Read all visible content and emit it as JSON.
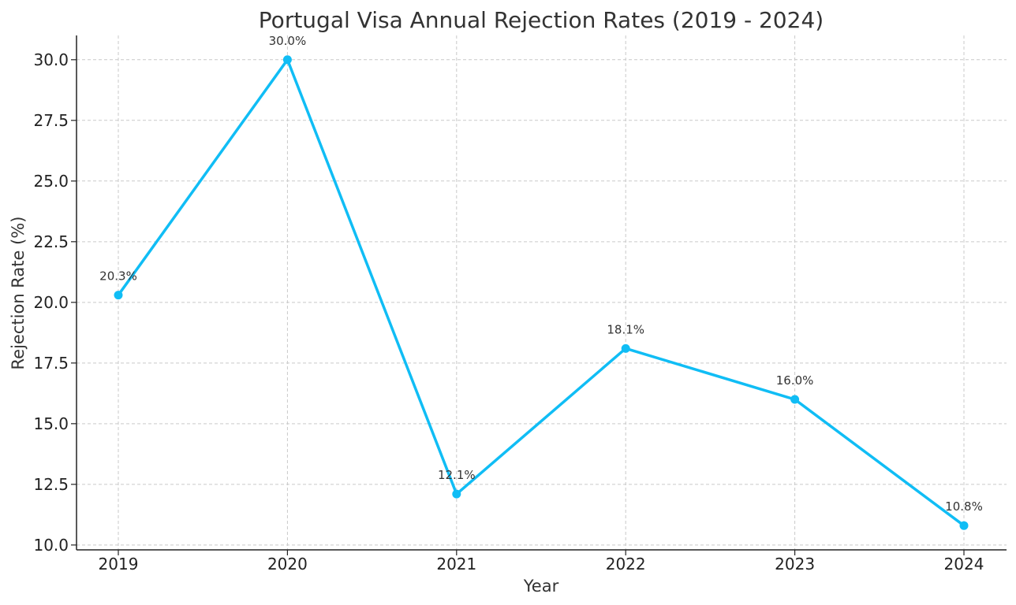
{
  "chart_data": {
    "type": "line",
    "title": "Portugal Visa Annual Rejection Rates (2019 - 2024)",
    "xlabel": "Year",
    "ylabel": "Rejection Rate (%)",
    "categories": [
      "2019",
      "2020",
      "2021",
      "2022",
      "2023",
      "2024"
    ],
    "series": [
      {
        "values": [
          20.3,
          30.0,
          12.1,
          18.1,
          16.0,
          10.8
        ],
        "color": "#10bdf5",
        "marker": "circle",
        "data_labels": [
          "20.3%",
          "30.0%",
          "12.1%",
          "18.1%",
          "16.0%",
          "10.8%"
        ]
      }
    ],
    "y_ticks": [
      "10.0",
      "12.5",
      "15.0",
      "17.5",
      "20.0",
      "22.5",
      "25.0",
      "27.5",
      "30.0"
    ],
    "ylim": [
      9.8,
      31.0
    ],
    "grid": true,
    "grid_style": "dashed",
    "legend": "none"
  }
}
